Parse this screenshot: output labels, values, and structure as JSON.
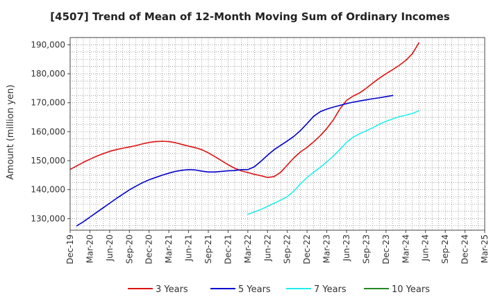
{
  "chart_data": {
    "type": "line",
    "title": "[4507]  Trend of Mean of 12-Month Moving Sum of Ordinary Incomes",
    "xlabel": "",
    "ylabel": "Amount (million yen)",
    "ylim": [
      126000,
      192500
    ],
    "yticks": [
      130000,
      140000,
      150000,
      160000,
      170000,
      180000,
      190000
    ],
    "ytick_labels": [
      "130,000",
      "140,000",
      "150,000",
      "160,000",
      "170,000",
      "180,000",
      "190,000"
    ],
    "x_categories": [
      "Dec-19",
      "Mar-20",
      "Jun-20",
      "Sep-20",
      "Dec-20",
      "Mar-21",
      "Jun-21",
      "Sep-21",
      "Dec-21",
      "Mar-22",
      "Jun-22",
      "Sep-22",
      "Dec-22",
      "Mar-23",
      "Jun-23",
      "Sep-23",
      "Dec-23",
      "Mar-24",
      "Jun-24",
      "Sep-24",
      "Dec-24",
      "Mar-25"
    ],
    "grid": true,
    "legend_position": "bottom",
    "series": [
      {
        "name": "3 Years",
        "color": "#dd1111",
        "start_index": 0,
        "values": [
          147000,
          148200,
          149400,
          150500,
          151500,
          152400,
          153200,
          153800,
          154300,
          154700,
          155200,
          155800,
          156300,
          156600,
          156700,
          156600,
          156200,
          155600,
          155000,
          154500,
          153800,
          152700,
          151400,
          150000,
          148600,
          147400,
          146500,
          145900,
          145300,
          144800,
          144200,
          144500,
          146000,
          148500,
          151000,
          153000,
          154600,
          156500,
          158600,
          161100,
          164100,
          167900,
          170800,
          172300,
          173400,
          175000,
          176800,
          178500,
          180000,
          181400,
          182900,
          184600,
          186900,
          190700
        ]
      },
      {
        "name": "5 Years",
        "color": "#0000cc",
        "start_index": 1,
        "values": [
          127500,
          128900,
          130500,
          132100,
          133700,
          135300,
          136900,
          138400,
          139900,
          141200,
          142400,
          143400,
          144200,
          145000,
          145700,
          146300,
          146700,
          146900,
          146800,
          146400,
          146100,
          146100,
          146300,
          146500,
          146600,
          146900,
          146900,
          147900,
          149800,
          151900,
          153800,
          155300,
          156800,
          158400,
          160400,
          162800,
          165300,
          166900,
          167800,
          168500,
          169100,
          169700,
          170200,
          170600,
          171000,
          171400,
          171700,
          172100,
          172500
        ]
      },
      {
        "name": "7 Years",
        "color": "#22eeee",
        "start_index": 27,
        "values": [
          131500,
          132300,
          133200,
          134200,
          135300,
          136400,
          137600,
          139500,
          142000,
          144200,
          146000,
          147700,
          149600,
          151600,
          153900,
          156300,
          158100,
          159300,
          160300,
          161400,
          162600,
          163600,
          164400,
          165200,
          165700,
          166300,
          167200
        ]
      },
      {
        "name": "10 Years",
        "color": "#228822",
        "start_index": 0,
        "values": []
      }
    ]
  }
}
